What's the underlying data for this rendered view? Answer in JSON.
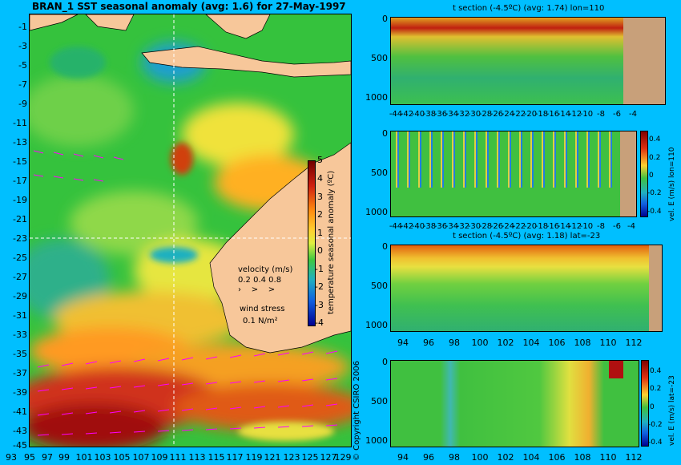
{
  "main_map": {
    "title": "BRAN_1  SST seasonal anomaly  (avg: 1.6)  for 27-May-1997",
    "lat_labels": [
      "-1",
      "-3",
      "-5",
      "-7",
      "-9",
      "-11",
      "-13",
      "-15",
      "-17",
      "-19",
      "-21",
      "-23",
      "-25",
      "-27",
      "-29",
      "-31",
      "-33",
      "-35",
      "-37",
      "-39",
      "-41",
      "-43",
      "-45"
    ],
    "lon_labels": [
      "93",
      "95",
      "97",
      "99",
      "101",
      "103",
      "105",
      "107",
      "109",
      "111",
      "113",
      "115",
      "117",
      "119",
      "121",
      "123",
      "125",
      "127",
      "129"
    ],
    "colorbar": {
      "label": "temperature seasonal anomaly (ºC)",
      "ticks": [
        "5",
        "4",
        "3",
        "2",
        "1",
        "0",
        "-1",
        "-2",
        "-3",
        "-4"
      ]
    },
    "velocity_legend": {
      "title": "velocity (m/s)",
      "values": "0.2 0.4 0.8"
    },
    "wind_legend": {
      "title": "wind stress",
      "value": "0.1 N/m²"
    },
    "copyright": "© Copyright CSIRO 2006"
  },
  "panels": [
    {
      "title": "t section (-4.5ºC) (avg: 1.74) lon=110",
      "y_ticks": [
        "0",
        "500",
        "1000"
      ],
      "x_ticks": [
        "-44",
        "-42",
        "-40",
        "-38",
        "-36",
        "-34",
        "-32",
        "-30",
        "-28",
        "-26",
        "-24",
        "-22",
        "-20",
        "-18",
        "-16",
        "-14",
        "-12",
        "-10",
        "-8",
        "-6",
        "-4"
      ]
    },
    {
      "title": "",
      "y_ticks": [
        "0",
        "500",
        "1000"
      ],
      "x_ticks": [
        "-44",
        "-42",
        "-40",
        "-38",
        "-36",
        "-34",
        "-32",
        "-30",
        "-28",
        "-26",
        "-24",
        "-22",
        "-20",
        "-18",
        "-16",
        "-14",
        "-12",
        "-10",
        "-8",
        "-6",
        "-4"
      ],
      "colorbar": {
        "label": "vel. E (m/s) lon=110",
        "ticks": [
          "0.4",
          "0.2",
          "0",
          "-0.2",
          "-0.4"
        ]
      }
    },
    {
      "title": "t section (-4.5ºC) (avg: 1.18) lat=-23",
      "y_ticks": [
        "0",
        "500",
        "1000"
      ],
      "x_ticks": [
        "94",
        "96",
        "98",
        "100",
        "102",
        "104",
        "106",
        "108",
        "110",
        "112"
      ]
    },
    {
      "title": "",
      "y_ticks": [
        "0",
        "500",
        "1000"
      ],
      "x_ticks": [
        "94",
        "96",
        "98",
        "100",
        "102",
        "104",
        "106",
        "108",
        "110",
        "112"
      ],
      "colorbar": {
        "label": "vel. E (m/s) lat=-23",
        "ticks": [
          "0.4",
          "0.2",
          "0",
          "-0.2",
          "-0.4"
        ]
      }
    }
  ],
  "colors": {
    "background": "#00bfff",
    "land": "#f7c79a",
    "section_land": "#c8a07a",
    "ocean_base": "#35c23d",
    "arrows": "#ff00ff"
  }
}
